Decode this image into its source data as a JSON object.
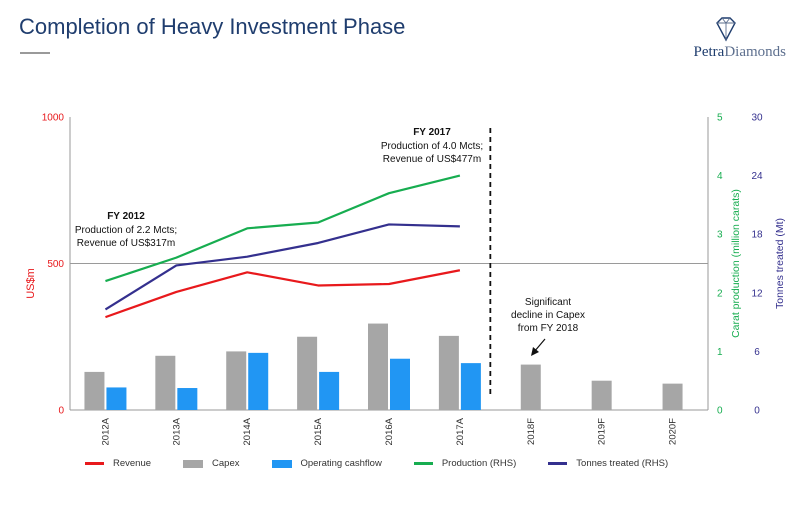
{
  "slide": {
    "title": "Completion of Heavy Investment Phase",
    "logo_text_primary": "Petra",
    "logo_text_secondary": "Diamonds"
  },
  "colors": {
    "revenue": "#e8191c",
    "capex": "#a6a6a6",
    "operating_cashflow": "#2196f3",
    "production": "#17ad50",
    "tonnes": "#34308e",
    "title": "#1f3d6e"
  },
  "chart_data": {
    "type": "bar",
    "categories": [
      "2012A",
      "2013A",
      "2014A",
      "2015A",
      "2016A",
      "2017A",
      "2018F",
      "2019F",
      "2020F"
    ],
    "y_left": {
      "label": "US$m",
      "ylim": [
        0,
        1000
      ],
      "ticks": [
        "0",
        "500",
        "1000"
      ]
    },
    "y_right_production": {
      "label": "Carat production (million carats)",
      "ylim": [
        0,
        5
      ],
      "ticks": [
        "0",
        "1",
        "2",
        "3",
        "4",
        "5"
      ]
    },
    "y_right_tonnes": {
      "label": "Tonnes treated (Mt)",
      "ylim": [
        0,
        30
      ],
      "ticks": [
        "0",
        "6",
        "12",
        "18",
        "24",
        "30"
      ]
    },
    "grid": "single line at 500",
    "series": [
      {
        "name": "Revenue",
        "type": "line",
        "axis": "left",
        "values": [
          317,
          403,
          470,
          425,
          430,
          477,
          null,
          null,
          null
        ]
      },
      {
        "name": "Capex",
        "type": "bar",
        "axis": "left",
        "values": [
          130,
          185,
          200,
          250,
          295,
          253,
          155,
          100,
          90
        ]
      },
      {
        "name": "Operating cashflow",
        "type": "bar",
        "axis": "left",
        "values": [
          77,
          75,
          195,
          130,
          175,
          160,
          null,
          null,
          null
        ]
      },
      {
        "name": "Production (RHS)",
        "type": "line",
        "axis": "right_production",
        "values": [
          2.2,
          2.6,
          3.1,
          3.2,
          3.7,
          4.0,
          null,
          null,
          null
        ]
      },
      {
        "name": "Tonnes treated (RHS)",
        "type": "line",
        "axis": "right_tonnes",
        "values": [
          10.3,
          14.8,
          15.7,
          17.1,
          19.0,
          18.8,
          null,
          null,
          null
        ]
      }
    ],
    "annotations": [
      {
        "category": "2012A",
        "title": "FY 2012",
        "lines": [
          "Production of 2.2 Mcts;",
          "Revenue of US$317m"
        ]
      },
      {
        "category": "2017A",
        "title": "FY 2017",
        "lines": [
          "Production of 4.0 Mcts;",
          "Revenue of US$477m"
        ]
      },
      {
        "category": "2018F",
        "title": "",
        "lines": [
          "Significant",
          "decline in Capex",
          "from FY 2018"
        ]
      }
    ],
    "divider": "between 2017A and 2018F",
    "legend_position": "bottom"
  }
}
